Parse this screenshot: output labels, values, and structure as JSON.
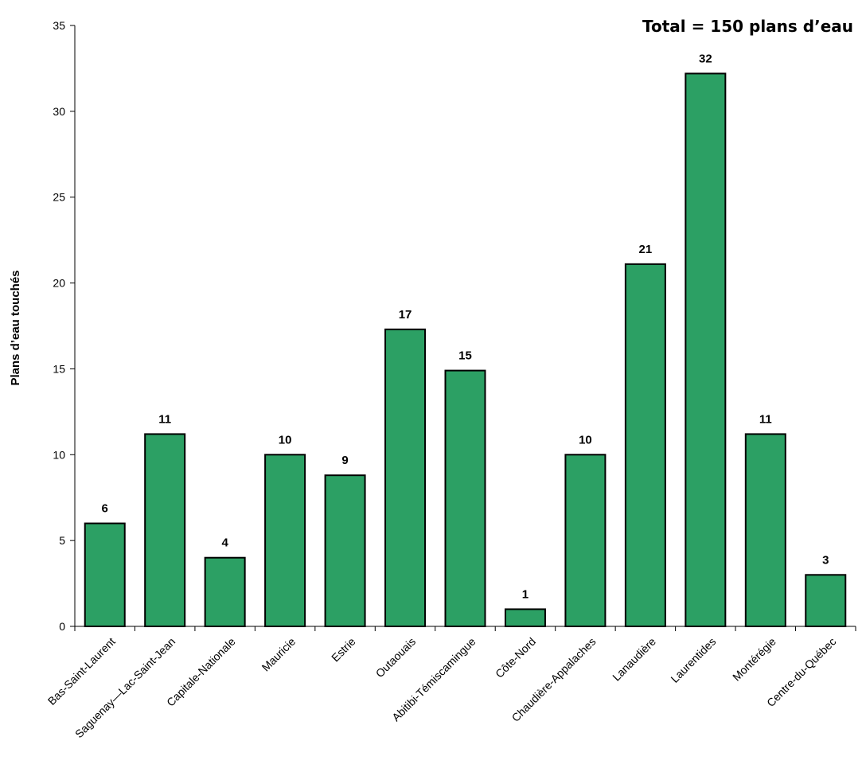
{
  "chart_data": {
    "type": "bar",
    "title": "",
    "annotation": "Total = 150 plans d’eau",
    "ylabel": "Plans d’eau touchés",
    "xlabel": "",
    "ylim": [
      0,
      35
    ],
    "yticks": [
      0,
      5,
      10,
      15,
      20,
      25,
      30,
      35
    ],
    "grid": false,
    "bar_color": "#2ca064",
    "categories": [
      "Bas-Saint-Laurent",
      "Saguenay—Lac-Saint-Jean",
      "Capitale-Nationale",
      "Mauricie",
      "Estrie",
      "Outaouais",
      "Abitibi-Témiscamingue",
      "Côte-Nord",
      "Chaudière-Appalaches",
      "Lanaudière",
      "Laurentides",
      "Montérégie",
      "Centre-du-Québec"
    ],
    "values": [
      6,
      11.2,
      4,
      10,
      8.8,
      17.3,
      14.9,
      1,
      10,
      21.1,
      32.2,
      11.2,
      3
    ],
    "data_labels": [
      "6",
      "11",
      "4",
      "10",
      "9",
      "17",
      "15",
      "1",
      "10",
      "21",
      "32",
      "11",
      "3"
    ]
  }
}
